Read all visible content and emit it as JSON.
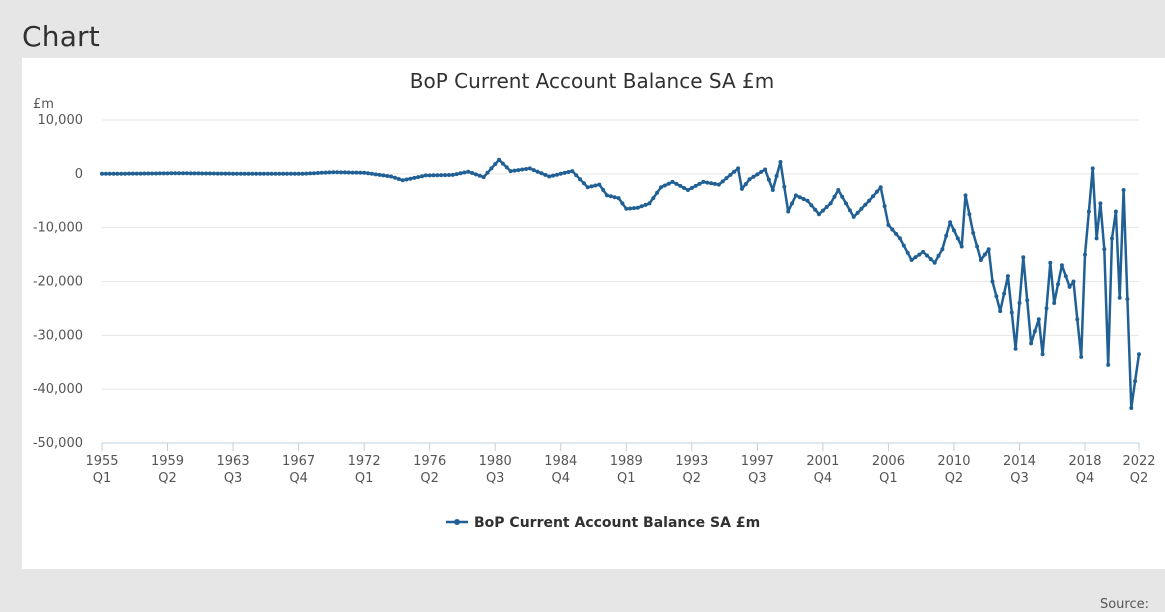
{
  "page": {
    "heading": "Chart",
    "source_label": "Source:"
  },
  "chart_data": {
    "type": "line",
    "title": "BoP Current Account Balance SA £m",
    "ylabel": "£m",
    "xlabel": "",
    "ylim": [
      -50000,
      10000
    ],
    "yticks": [
      10000,
      0,
      -10000,
      -20000,
      -30000,
      -40000,
      -50000
    ],
    "ytick_labels": [
      "10,000",
      "0",
      "-10,000",
      "-20,000",
      "-30,000",
      "-40,000",
      "-50,000"
    ],
    "x_start": "1955 Q1",
    "x_end": "2022 Q2",
    "xticks": [
      {
        "year": "1955",
        "quarter": "Q1"
      },
      {
        "year": "1959",
        "quarter": "Q2"
      },
      {
        "year": "1963",
        "quarter": "Q3"
      },
      {
        "year": "1967",
        "quarter": "Q4"
      },
      {
        "year": "1972",
        "quarter": "Q1"
      },
      {
        "year": "1976",
        "quarter": "Q2"
      },
      {
        "year": "1980",
        "quarter": "Q3"
      },
      {
        "year": "1984",
        "quarter": "Q4"
      },
      {
        "year": "1989",
        "quarter": "Q1"
      },
      {
        "year": "1993",
        "quarter": "Q2"
      },
      {
        "year": "1997",
        "quarter": "Q3"
      },
      {
        "year": "2001",
        "quarter": "Q4"
      },
      {
        "year": "2006",
        "quarter": "Q1"
      },
      {
        "year": "2010",
        "quarter": "Q2"
      },
      {
        "year": "2014",
        "quarter": "Q3"
      },
      {
        "year": "2018",
        "quarter": "Q4"
      },
      {
        "year": "2022",
        "quarter": "Q2"
      }
    ],
    "legend": "bottom-center",
    "color": "#206095",
    "series": [
      {
        "name": "BoP Current Account Balance SA £m",
        "anchors": [
          [
            "1955 Q1",
            0
          ],
          [
            "1960 Q1",
            100
          ],
          [
            "1965 Q1",
            0
          ],
          [
            "1968 Q1",
            0
          ],
          [
            "1970 Q1",
            300
          ],
          [
            "1972 Q1",
            200
          ],
          [
            "1973 Q4",
            -500
          ],
          [
            "1974 Q3",
            -1200
          ],
          [
            "1976 Q1",
            -300
          ],
          [
            "1977 Q4",
            -200
          ],
          [
            "1978 Q4",
            400
          ],
          [
            "1979 Q4",
            -600
          ],
          [
            "1980 Q4",
            2600
          ],
          [
            "1981 Q3",
            500
          ],
          [
            "1982 Q4",
            1000
          ],
          [
            "1984 Q1",
            -500
          ],
          [
            "1985 Q3",
            500
          ],
          [
            "1986 Q3",
            -2500
          ],
          [
            "1987 Q2",
            -2000
          ],
          [
            "1987 Q4",
            -4000
          ],
          [
            "1988 Q3",
            -4500
          ],
          [
            "1989 Q1",
            -6500
          ],
          [
            "1989 Q4",
            -6300
          ],
          [
            "1990 Q3",
            -5500
          ],
          [
            "1991 Q2",
            -2500
          ],
          [
            "1992 Q1",
            -1500
          ],
          [
            "1993 Q1",
            -3000
          ],
          [
            "1994 Q1",
            -1500
          ],
          [
            "1995 Q1",
            -2000
          ],
          [
            "1996 Q2",
            1000
          ],
          [
            "1996 Q3",
            -2800
          ],
          [
            "1997 Q1",
            -1000
          ],
          [
            "1998 Q1",
            800
          ],
          [
            "1998 Q3",
            -3000
          ],
          [
            "1999 Q1",
            2200
          ],
          [
            "1999 Q3",
            -7000
          ],
          [
            "2000 Q1",
            -4000
          ],
          [
            "2000 Q4",
            -5000
          ],
          [
            "2001 Q3",
            -7500
          ],
          [
            "2002 Q2",
            -5500
          ],
          [
            "2002 Q4",
            -3000
          ],
          [
            "2003 Q4",
            -8000
          ],
          [
            "2004 Q4",
            -5000
          ],
          [
            "2005 Q3",
            -2500
          ],
          [
            "2006 Q1",
            -9500
          ],
          [
            "2006 Q4",
            -12000
          ],
          [
            "2007 Q3",
            -16000
          ],
          [
            "2008 Q2",
            -14500
          ],
          [
            "2009 Q1",
            -16500
          ],
          [
            "2009 Q3",
            -14000
          ],
          [
            "2010 Q1",
            -9000
          ],
          [
            "2010 Q4",
            -13500
          ],
          [
            "2011 Q1",
            -4000
          ],
          [
            "2011 Q3",
            -11000
          ],
          [
            "2012 Q1",
            -16000
          ],
          [
            "2012 Q3",
            -14000
          ],
          [
            "2012 Q4",
            -20000
          ],
          [
            "2013 Q2",
            -25500
          ],
          [
            "2013 Q4",
            -19000
          ],
          [
            "2014 Q2",
            -32500
          ],
          [
            "2014 Q4",
            -15500
          ],
          [
            "2015 Q2",
            -31500
          ],
          [
            "2015 Q4",
            -27000
          ],
          [
            "2016 Q1",
            -33500
          ],
          [
            "2016 Q3",
            -16500
          ],
          [
            "2016 Q4",
            -24000
          ],
          [
            "2017 Q2",
            -17000
          ],
          [
            "2017 Q4",
            -21000
          ],
          [
            "2018 Q1",
            -20000
          ],
          [
            "2018 Q3",
            -34000
          ],
          [
            "2018 Q4",
            -15000
          ],
          [
            "2019 Q2",
            1000
          ],
          [
            "2019 Q3",
            -12000
          ],
          [
            "2019 Q4",
            -5500
          ],
          [
            "2020 Q1",
            -14000
          ],
          [
            "2020 Q2",
            -35500
          ],
          [
            "2020 Q3",
            -12000
          ],
          [
            "2020 Q4",
            -7000
          ],
          [
            "2021 Q1",
            -23000
          ],
          [
            "2021 Q2",
            -3000
          ],
          [
            "2021 Q4",
            -43500
          ],
          [
            "2022 Q2",
            -33500
          ]
        ]
      }
    ]
  }
}
